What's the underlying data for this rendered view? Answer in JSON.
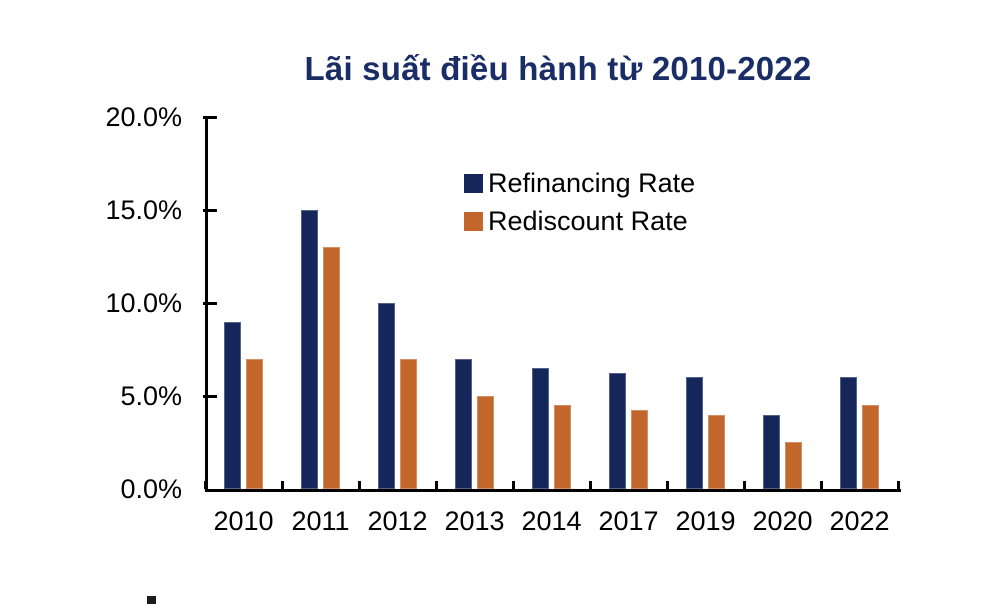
{
  "chart_data": {
    "type": "bar",
    "title": "Lãi suất điều hành từ 2010-2022",
    "categories": [
      "2010",
      "2011",
      "2012",
      "2013",
      "2014",
      "2017",
      "2019",
      "2020",
      "2022"
    ],
    "series": [
      {
        "name": "Refinancing Rate",
        "color": "#14265a",
        "values": [
          9.0,
          15.0,
          10.0,
          7.0,
          6.5,
          6.25,
          6.0,
          4.0,
          6.0
        ]
      },
      {
        "name": "Rediscount Rate",
        "color": "#c2662c",
        "values": [
          7.0,
          13.0,
          7.0,
          5.0,
          4.5,
          4.25,
          4.0,
          2.5,
          4.5
        ]
      }
    ],
    "unit": "%",
    "ylim": [
      0,
      20
    ],
    "ytick_step": 5,
    "ytick_labels": [
      "0.0%",
      "5.0%",
      "10.0%",
      "15.0%",
      "20.0%"
    ],
    "xlabel": "",
    "ylabel": "",
    "grid": false,
    "legend_position": "inside-top-center",
    "tick_style": "inside",
    "colors": {
      "title": "#1a2d66",
      "axis": "#000000",
      "label_text": "#000000",
      "background": "#ffffff"
    }
  }
}
